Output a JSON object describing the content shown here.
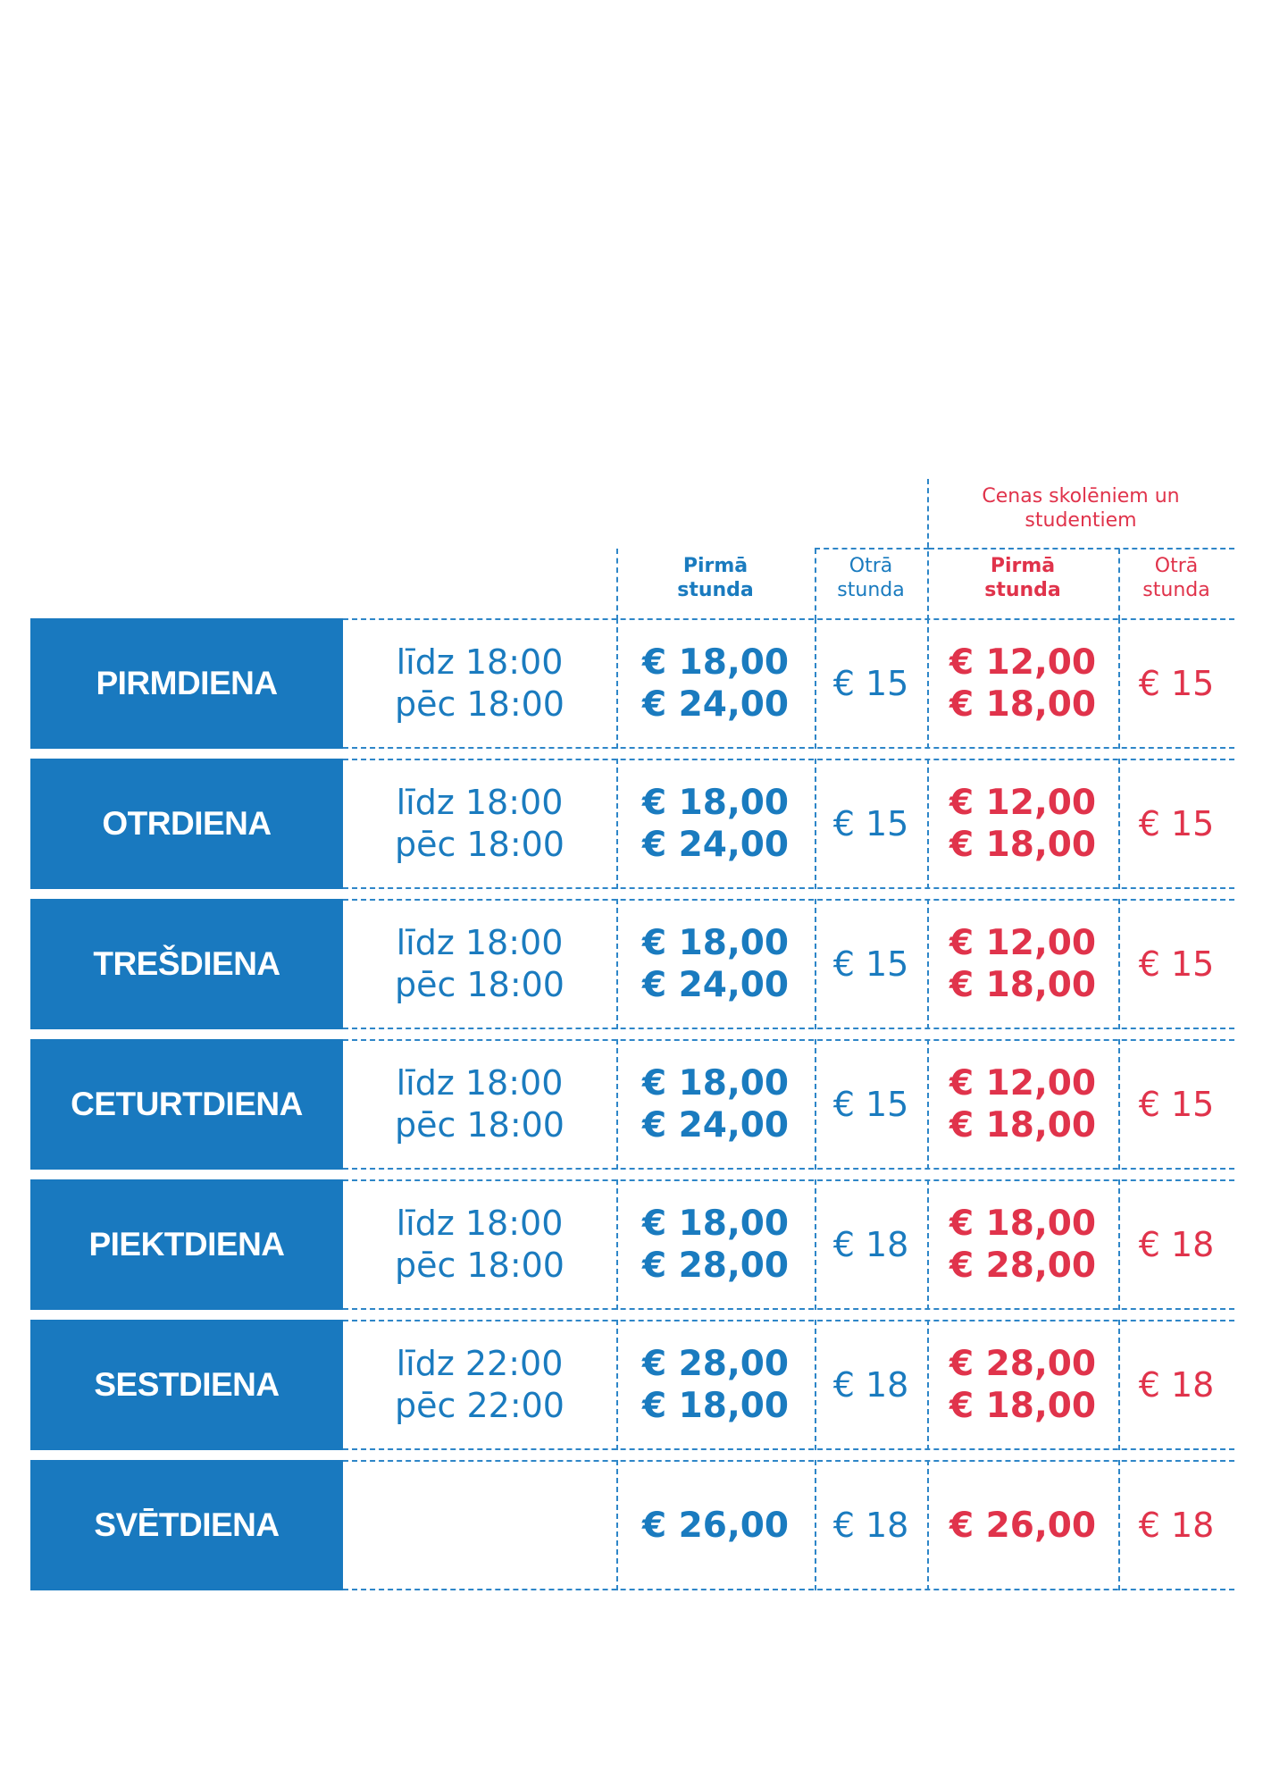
{
  "header": {
    "student_title": "Cenas skolēniem un studentiem",
    "student_title_line1": "Cenas skolēniem un",
    "student_title_line2": "studentiem",
    "col_first_line1": "Pirmā",
    "col_first_line2": "stunda",
    "col_second_line1": "Otrā",
    "col_second_line2": "stunda",
    "col_sfirst_line1": "Pirmā",
    "col_sfirst_line2": "stunda",
    "col_ssecond_line1": "Otrā",
    "col_ssecond_line2": "stunda"
  },
  "colors": {
    "blue": "#1979bf",
    "red": "#e0334b"
  },
  "rows": [
    {
      "day": "PIRMDIENA",
      "time1": "līdz 18:00",
      "time2": "pēc 18:00",
      "first1": "€ 18,00",
      "first2": "€ 24,00",
      "second": "€ 15",
      "sfirst1": "€ 12,00",
      "sfirst2": "€ 18,00",
      "ssecond": "€ 15"
    },
    {
      "day": "OTRDIENA",
      "time1": "līdz 18:00",
      "time2": "pēc 18:00",
      "first1": "€ 18,00",
      "first2": "€ 24,00",
      "second": "€ 15",
      "sfirst1": "€ 12,00",
      "sfirst2": "€ 18,00",
      "ssecond": "€ 15"
    },
    {
      "day": "TREŠDIENA",
      "time1": "līdz 18:00",
      "time2": "pēc 18:00",
      "first1": "€ 18,00",
      "first2": "€ 24,00",
      "second": "€ 15",
      "sfirst1": "€ 12,00",
      "sfirst2": "€ 18,00",
      "ssecond": "€ 15"
    },
    {
      "day": "CETURTDIENA",
      "time1": "līdz 18:00",
      "time2": "pēc 18:00",
      "first1": "€ 18,00",
      "first2": "€ 24,00",
      "second": "€ 15",
      "sfirst1": "€ 12,00",
      "sfirst2": "€ 18,00",
      "ssecond": "€ 15"
    },
    {
      "day": "PIEKTDIENA",
      "time1": "līdz 18:00",
      "time2": "pēc 18:00",
      "first1": "€ 18,00",
      "first2": "€ 28,00",
      "second": "€ 18",
      "sfirst1": "€ 18,00",
      "sfirst2": "€ 28,00",
      "ssecond": "€ 18"
    },
    {
      "day": "SESTDIENA",
      "time1": "līdz 22:00",
      "time2": "pēc 22:00",
      "first1": "€ 28,00",
      "first2": "€ 18,00",
      "second": "€ 18",
      "sfirst1": "€ 28,00",
      "sfirst2": "€ 18,00",
      "ssecond": "€ 18"
    },
    {
      "day": "SVĒTDIENA",
      "time1": "",
      "time2": "",
      "first1": "€ 26,00",
      "first2": "",
      "second": "€ 18",
      "sfirst1": "€ 26,00",
      "sfirst2": "",
      "ssecond": "€ 18"
    }
  ]
}
